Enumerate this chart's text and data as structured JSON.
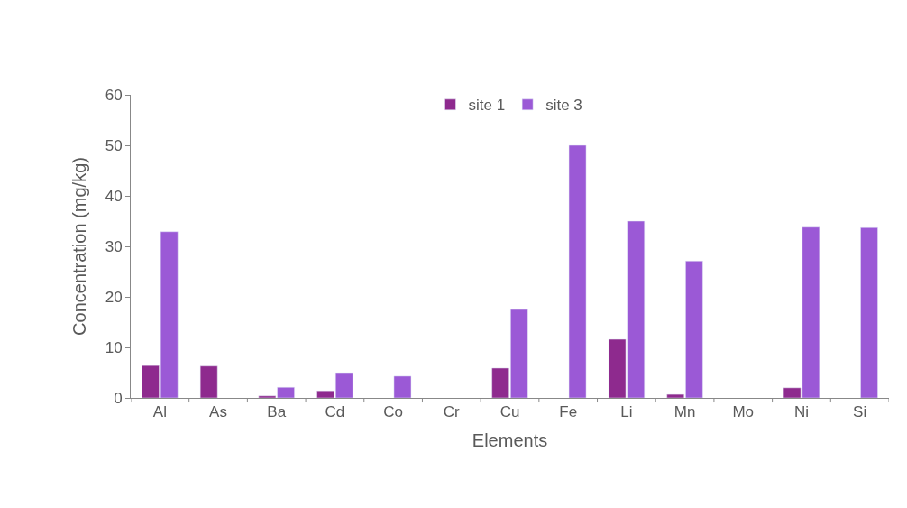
{
  "chart_data": {
    "type": "bar",
    "xlabel": "Elements",
    "ylabel": "Concentration (mg/kg)",
    "categories": [
      "Al",
      "As",
      "Ba",
      "Cd",
      "Co",
      "Cr",
      "Cu",
      "Fe",
      "Li",
      "Mn",
      "Mo",
      "Ni",
      "Si"
    ],
    "series": [
      {
        "name": "site 1",
        "color": "#8e2a8e",
        "values": [
          6.4,
          6.3,
          0.4,
          1.4,
          null,
          null,
          5.9,
          null,
          11.6,
          0.7,
          null,
          2.0,
          null
        ]
      },
      {
        "name": "site 3",
        "color": "#9b59d6",
        "values": [
          32.9,
          null,
          2.1,
          5.0,
          4.3,
          null,
          17.5,
          50,
          35,
          27.1,
          null,
          33.8,
          33.7
        ]
      }
    ],
    "ylim": [
      0,
      60
    ],
    "yticks": [
      0,
      10,
      20,
      30,
      40,
      50,
      60
    ],
    "legend": "top"
  }
}
